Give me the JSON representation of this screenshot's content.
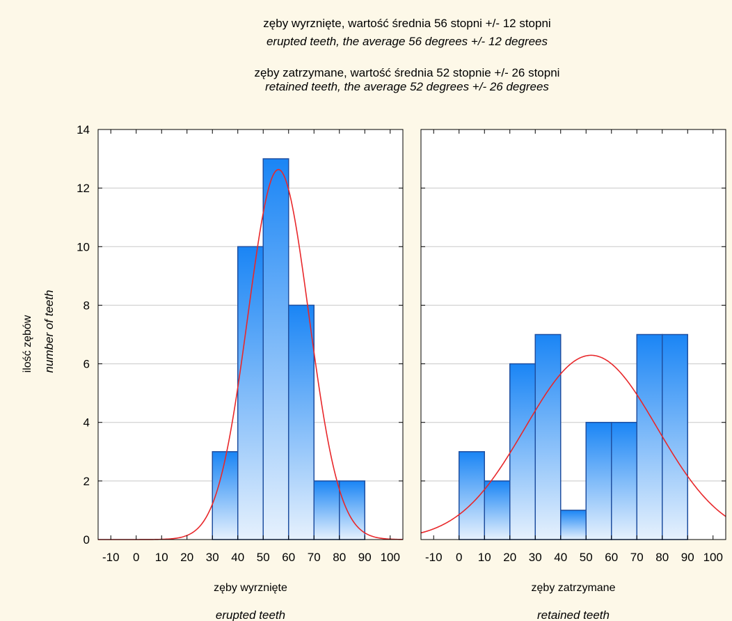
{
  "chart_data": [
    {
      "type": "bar",
      "title_lines": [
        "zęby wyrznięte, wartość średnia 56 stopni +/- 12 stopni",
        "erupted teeth, the average 56 degrees +/- 12 degrees",
        "zęby zatrzymane, wartość średnia 52 stopnie +/- 26 stopni",
        "retained teeth, the average 52 degrees +/- 26 degrees"
      ],
      "ylabel": "ilość zębów",
      "ylabel_en": "number of teeth",
      "ylim": [
        0,
        14
      ],
      "yticks": [
        0,
        2,
        4,
        6,
        8,
        10,
        12,
        14
      ],
      "xlim": [
        -15,
        105
      ],
      "xticks": [
        -10,
        0,
        10,
        20,
        30,
        40,
        50,
        60,
        70,
        80,
        90,
        100
      ],
      "grid": true,
      "panels": [
        {
          "xlabel": "zęby wyrznięte",
          "xlabel_en": "erupted teeth",
          "bins": [
            [
              30,
              40
            ],
            [
              40,
              50
            ],
            [
              50,
              60
            ],
            [
              60,
              70
            ],
            [
              70,
              80
            ],
            [
              80,
              90
            ]
          ],
          "values": [
            3,
            10,
            13,
            8,
            2,
            2
          ],
          "fit": {
            "mean": 56,
            "sd": 12,
            "n": 38,
            "binwidth": 10
          }
        },
        {
          "xlabel": "zęby zatrzymane",
          "xlabel_en": "retained teeth",
          "bins": [
            [
              0,
              10
            ],
            [
              10,
              20
            ],
            [
              20,
              30
            ],
            [
              30,
              40
            ],
            [
              40,
              50
            ],
            [
              50,
              60
            ],
            [
              60,
              70
            ],
            [
              70,
              80
            ],
            [
              80,
              90
            ]
          ],
          "values": [
            3,
            2,
            6,
            7,
            1,
            4,
            4,
            7,
            7
          ],
          "fit": {
            "mean": 52,
            "sd": 26,
            "n": 41,
            "binwidth": 10
          }
        }
      ]
    }
  ],
  "colors": {
    "background": "#fdf8e8",
    "bar_fill_top": "#1a85f5",
    "bar_fill_bottom": "#e6f1fd",
    "bar_stroke": "#1f4fa0",
    "fit_curve": "#e8272a",
    "grid": "#c8c8c8"
  }
}
